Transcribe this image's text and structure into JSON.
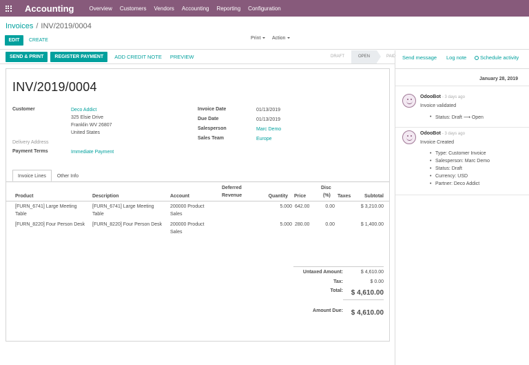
{
  "app": {
    "brand": "Accounting"
  },
  "nav": {
    "items": [
      "Overview",
      "Customers",
      "Vendors",
      "Accounting",
      "Reporting",
      "Configuration"
    ]
  },
  "breadcrumb": {
    "parent": "Invoices",
    "sep": "/",
    "current": "INV/2019/0004"
  },
  "controls": {
    "edit": "EDIT",
    "create": "CREATE",
    "print": "Print",
    "action": "Action"
  },
  "statusbar": {
    "send_print": "SEND & PRINT",
    "register_payment": "REGISTER PAYMENT",
    "add_credit_note": "ADD CREDIT NOTE",
    "preview": "PREVIEW",
    "stages": [
      "DRAFT",
      "OPEN",
      "PAID"
    ],
    "active_stage": "OPEN"
  },
  "invoice": {
    "number": "INV/2019/0004",
    "customer_label": "Customer",
    "customer_name": "Deco Addict",
    "address_1": "325 Elsie Drive",
    "address_2": "Franklin WV 26807",
    "address_3": "United States",
    "delivery_label": "Delivery Address",
    "terms_label": "Payment Terms",
    "terms_value": "Immediate Payment",
    "invoice_date_label": "Invoice Date",
    "invoice_date": "01/13/2019",
    "due_date_label": "Due Date",
    "due_date": "01/13/2019",
    "salesperson_label": "Salesperson",
    "salesperson": "Marc Demo",
    "sales_team_label": "Sales Team",
    "sales_team": "Europe"
  },
  "tabs": [
    "Invoice Lines",
    "Other Info"
  ],
  "lines": {
    "headers": {
      "product": "Product",
      "description": "Description",
      "account": "Account",
      "deferred_1": "Deferred",
      "deferred_2": "Revenue",
      "quantity": "Quantity",
      "price": "Price",
      "disc_1": "Disc",
      "disc_2": "(%)",
      "taxes": "Taxes",
      "subtotal": "Subtotal"
    },
    "rows": [
      {
        "product_1": "[FURN_6741] Large Meeting",
        "product_2": "Table",
        "description_1": "[FURN_6741] Large Meeting",
        "description_2": "Table",
        "account_1": "200000 Product",
        "account_2": "Sales",
        "quantity": "5.000",
        "price": "642.00",
        "disc": "0.00",
        "subtotal": "$ 3,210.00"
      },
      {
        "product_1": "[FURN_8220] Four Person Desk",
        "product_2": "",
        "description_1": "[FURN_8220] Four Person Desk",
        "description_2": "",
        "account_1": "200000 Product",
        "account_2": "Sales",
        "quantity": "5.000",
        "price": "280.00",
        "disc": "0.00",
        "subtotal": "$ 1,400.00"
      }
    ]
  },
  "totals": {
    "untaxed_label": "Untaxed Amount:",
    "untaxed": "$ 4,610.00",
    "tax_label": "Tax:",
    "tax": "$ 0.00",
    "total_label": "Total:",
    "total": "$ 4,610.00",
    "due_label": "Amount Due:",
    "due": "$ 4,610.00"
  },
  "chatter": {
    "send_message": "Send message",
    "log_note": "Log note",
    "schedule_activity": "Schedule activity",
    "date": "January 28, 2019",
    "messages": [
      {
        "author": "OdooBot",
        "ago": "- 3 days ago",
        "body": "Invoice validated",
        "tracking": [
          "Status: Draft ⟶ Open"
        ]
      },
      {
        "author": "OdooBot",
        "ago": "- 3 days ago",
        "body": "Invoice Created",
        "tracking": [
          "Type: Customer Invoice",
          "Salesperson: Marc Demo",
          "Status: Draft",
          "Currency: USD",
          "Partner: Deco Addict"
        ]
      }
    ]
  },
  "colors": {
    "brand": "#875a7b",
    "accent": "#00a09d"
  }
}
